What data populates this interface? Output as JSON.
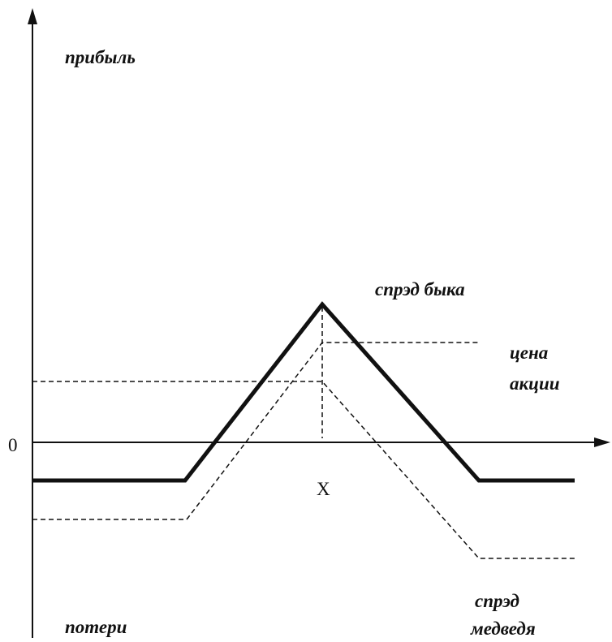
{
  "labels": {
    "profit": "прибыль",
    "loss": "потери",
    "zero": "0",
    "strike": "X",
    "bull_spread": "спрэд быка",
    "stock_price": [
      "цена",
      "акции"
    ],
    "bear_spread": [
      "спрэд",
      "медведя"
    ]
  }
}
